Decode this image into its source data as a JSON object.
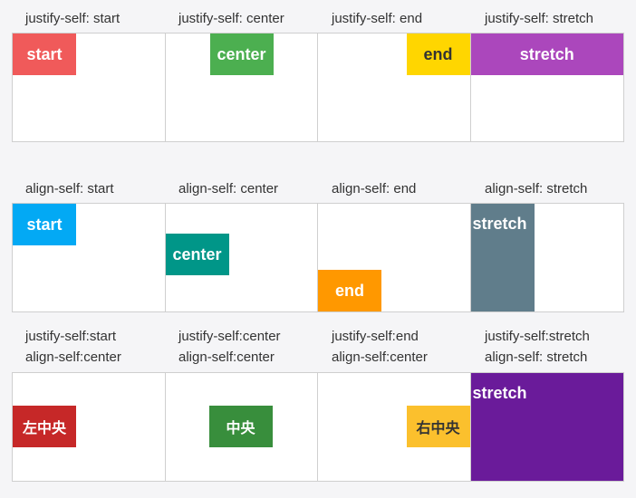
{
  "section1": {
    "labels": [
      "justify-self: start",
      "justify-self: center",
      "justify-self: end",
      "justify-self: stretch"
    ],
    "boxes": [
      {
        "text": "start",
        "color": "#f05a5a"
      },
      {
        "text": "center",
        "color": "#4caf50"
      },
      {
        "text": "end",
        "color": "#ffd600"
      },
      {
        "text": "stretch",
        "color": "#ab47bc"
      }
    ]
  },
  "section2": {
    "labels": [
      "align-self: start",
      "align-self: center",
      "align-self: end",
      "align-self: stretch"
    ],
    "boxes": [
      {
        "text": "start",
        "color": "#03a9f4"
      },
      {
        "text": "center",
        "color": "#009688"
      },
      {
        "text": "end",
        "color": "#ff9800"
      },
      {
        "text": "stretch",
        "color": "#607d8b"
      }
    ]
  },
  "section3": {
    "labels": [
      [
        "justify-self:start",
        "align-self:center"
      ],
      [
        "justify-self:center",
        "align-self:center"
      ],
      [
        "justify-self:end",
        "align-self:center"
      ],
      [
        "justify-self:stretch",
        "align-self: stretch"
      ]
    ],
    "boxes": [
      {
        "text": "左中央",
        "color": "#c62828"
      },
      {
        "text": "中央",
        "color": "#388e3c"
      },
      {
        "text": "右中央",
        "color": "#fbc02d"
      },
      {
        "text": "stretch",
        "color": "#6a1b9a"
      }
    ]
  }
}
